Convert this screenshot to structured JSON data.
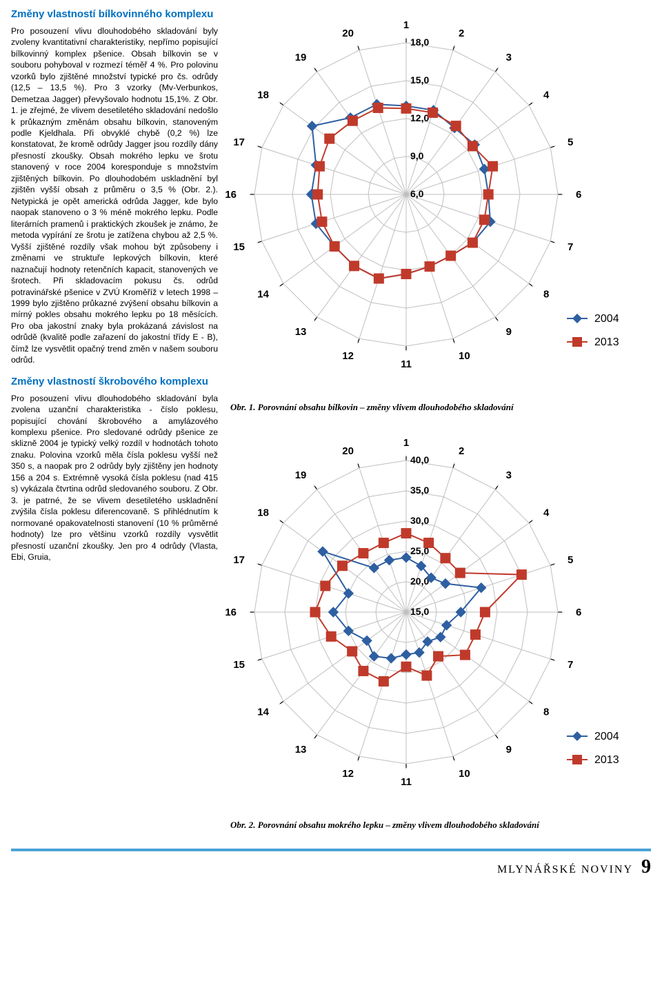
{
  "palette": {
    "title_color": "#0070c0",
    "text_color": "#000000",
    "footer_bar": "#4aa3d8",
    "series_2004": "#2e5fa1",
    "series_2013": "#c03a2b",
    "grid": "#bfbfbf",
    "axis_label": "#000000",
    "tick_label": "#000000",
    "background": "#ffffff"
  },
  "left": {
    "section1_title": "Změny vlastností bílkovinného komplexu",
    "section1_p1": "Pro posouzení vlivu dlouhodobého skladování byly zvoleny kvantitativní charakteristiky, nepřímo popisující bílkovinný komplex pšenice. Obsah bílkovin se v souboru pohyboval v rozmezí téměř 4 %. Pro polovinu vzorků bylo zjištěné množství typické pro čs. odrůdy (12,5 – 13,5 %). Pro 3 vzorky (Mv-Verbunkos, Demetzaa Jagger) převyšovalo hodnotu 15,1%. Z Obr. 1. je zřejmé, že vlivem desetiletého skladování nedošlo k průkazným změnám obsahu bílkovin, stanoveným podle Kjeldhala. Při obvyklé chybě (0,2 %) lze konstatovat, že kromě odrůdy Jagger jsou rozdíly dány přesností zkoušky. Obsah mokrého lepku ve šrotu stanovený v roce 2004 koresponduje s množstvím zjištěných bílkovin. Po dlouhodobém uskladnění byl zjištěn vyšší obsah z průměru o 3,5 % (Obr. 2.). Netypická je opět americká odrůda Jagger, kde bylo naopak stanoveno o 3 % méně mokrého lepku. Podle literárních pramenů i praktických zkoušek je známo, že metoda vypírání ze šrotu je zatížena chybou až 2,5 %. Vyšší zjištěné rozdíly však mohou být způsobeny i změnami ve struktuře lepkových bílkovin, které naznačují hodnoty retenčních kapacit, stanovených ve šrotech. Při skladovacím pokusu čs. odrůd potravinářské pšenice v ZVÚ Kroměříž v letech 1998 – 1999 bylo zjištěno průkazné zvýšení obsahu bílkovin a mírný pokles obsahu mokrého lepku po 18 měsících. Pro oba jakostní znaky byla prokázaná závislost na odrůdě (kvalitě podle zařazení do jakostní třídy E - B), čímž lze vysvětlit opačný trend změn v našem souboru odrůd.",
    "section2_title": "Změny vlastností škrobového komplexu",
    "section2_p1": "Pro posouzení vlivu dlouhodobého skladování byla zvolena uzanční charakteristika - číslo poklesu, popisující chování škrobového a amylázového komplexu pšenice. Pro sledované odrůdy pšenice ze sklizně 2004 je typický velký rozdíl v hodnotách tohoto znaku. Polovina vzorků měla čísla poklesu vyšší než 350 s, a naopak pro 2 odrůdy byly zjištěny jen hodnoty 156 a 204 s. Extrémně vysoká čísla poklesu (nad 415 s) vykázala čtvrtina odrůd sledovaného souboru. Z Obr. 3. je patrné, že se vlivem desetiletého uskladnění zvýšila čísla poklesu diferencovaně. S přihlédnutím k normované opakovatelnosti stanovení (10 % průměrné hodnoty) lze pro většinu vzorků rozdíly vysvětlit přesností uzanční zkoušky. Jen pro 4 odrůdy (Vlasta, Ebi, Gruia,"
  },
  "chart1": {
    "type": "radar",
    "axis_count": 20,
    "axis_labels": [
      "1",
      "2",
      "3",
      "4",
      "5",
      "6",
      "7",
      "8",
      "9",
      "10",
      "11",
      "12",
      "13",
      "14",
      "15",
      "16",
      "17",
      "18",
      "19",
      "20"
    ],
    "rings": [
      6.0,
      9.0,
      12.0,
      15.0,
      18.0
    ],
    "ring_labels": [
      "6,0",
      "9,0",
      "12,0",
      "15,0",
      "18,0"
    ],
    "rmin": 6.0,
    "rmax": 18.0,
    "label_fontsize": 15,
    "ring_label_fontsize": 14,
    "legend": [
      "2004",
      "2013"
    ],
    "legend_colors": [
      "#2e5fa1",
      "#c03a2b"
    ],
    "marker_2004": "diamond",
    "marker_2013": "square",
    "line_width": 2,
    "marker_size": 7,
    "series_2004": [
      13.0,
      13.0,
      12.5,
      12.7,
      12.5,
      12.5,
      13.0,
      12.5,
      12.0,
      12.0,
      12.3,
      13.0,
      13.0,
      13.0,
      13.5,
      13.5,
      13.5,
      15.2,
      13.5,
      13.5
    ],
    "series_2013": [
      12.8,
      12.8,
      12.7,
      12.5,
      13.2,
      12.5,
      12.5,
      12.5,
      12.0,
      12.0,
      12.3,
      13.0,
      13.0,
      13.0,
      13.0,
      13.0,
      13.2,
      13.5,
      13.2,
      13.2
    ],
    "caption": "Obr. 1. Porovnání obsahu bílkovin – změny vlivem dlouhodobého skladování"
  },
  "chart2": {
    "type": "radar",
    "axis_count": 20,
    "axis_labels": [
      "1",
      "2",
      "3",
      "4",
      "5",
      "6",
      "7",
      "8",
      "9",
      "10",
      "11",
      "12",
      "13",
      "14",
      "15",
      "16",
      "17",
      "18",
      "19",
      "20"
    ],
    "rings": [
      15.0,
      20.0,
      25.0,
      30.0,
      35.0,
      40.0
    ],
    "ring_labels": [
      "15,0",
      "20,0",
      "25,0",
      "30,0",
      "35,0",
      "40,0"
    ],
    "rmin": 15.0,
    "rmax": 40.0,
    "label_fontsize": 15,
    "ring_label_fontsize": 14,
    "legend": [
      "2004",
      "2013"
    ],
    "legend_colors": [
      "#2e5fa1",
      "#c03a2b"
    ],
    "marker_2004": "diamond",
    "marker_2013": "square",
    "line_width": 2,
    "marker_size": 7,
    "series_2004": [
      24.0,
      23.0,
      22.0,
      23.0,
      28.0,
      24.0,
      22.0,
      22.0,
      21.0,
      22.0,
      22.0,
      23.0,
      24.0,
      23.0,
      25.0,
      27.0,
      25.0,
      32.0,
      24.0,
      24.0
    ],
    "series_2013": [
      28.0,
      27.0,
      26.0,
      26.0,
      35.0,
      28.0,
      27.0,
      27.0,
      24.0,
      26.0,
      24.0,
      27.0,
      27.0,
      26.0,
      28.0,
      30.0,
      29.0,
      28.0,
      27.0,
      27.0
    ],
    "caption": "Obr. 2. Porovnání obsahu mokrého lepku – změny vlivem dlouhodobého skladování"
  },
  "footer": {
    "title": "MLYNÁŘSKÉ NOVINY",
    "page": "9"
  }
}
